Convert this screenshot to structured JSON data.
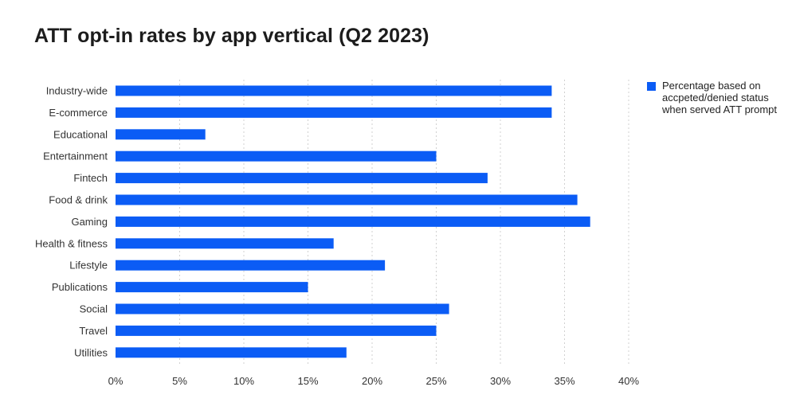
{
  "chart_data": {
    "type": "bar",
    "orientation": "horizontal",
    "title": "ATT opt-in rates by app vertical (Q2 2023)",
    "categories": [
      "Industry-wide",
      "E-commerce",
      "Educational",
      "Entertainment",
      "Fintech",
      "Food & drink",
      "Gaming",
      "Health & fitness",
      "Lifestyle",
      "Publications",
      "Social",
      "Travel",
      "Utilities"
    ],
    "series": [
      {
        "name": "Percentage based on accpeted/denied status when served ATT prompt",
        "color": "#0b5cf5",
        "values": [
          34,
          34,
          7,
          25,
          29,
          36,
          37,
          17,
          21,
          15,
          26,
          25,
          18
        ]
      }
    ],
    "xlim": [
      0,
      40
    ],
    "xticks": [
      0,
      5,
      10,
      15,
      20,
      25,
      30,
      35,
      40
    ],
    "xtick_labels": [
      "0%",
      "5%",
      "10%",
      "15%",
      "20%",
      "25%",
      "30%",
      "35%",
      "40%"
    ],
    "grid": "vertical dotted",
    "legend_position": "top-right"
  },
  "legend": {
    "label": "Percentage based on accpeted/denied status when served ATT prompt"
  }
}
